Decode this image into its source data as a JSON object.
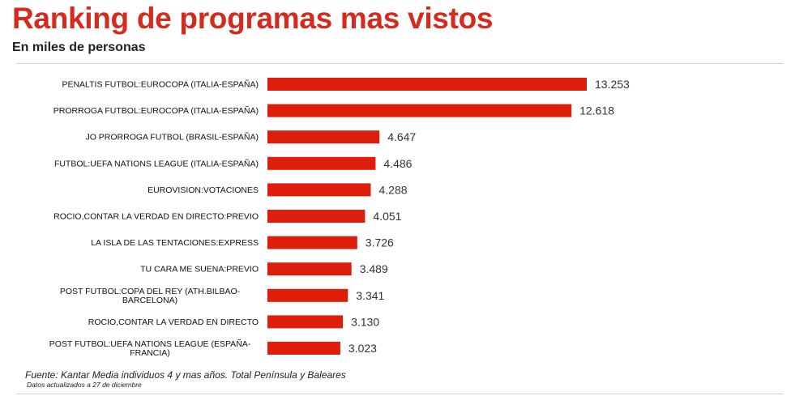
{
  "header": {
    "title": "Ranking de programas mas vistos",
    "subtitle": "En miles de personas"
  },
  "footer": {
    "source": "Fuente: Kantar Media individuos 4 y mas años. Total Península y Baleares",
    "updated": "Datos actualizados a 27 de diciembre"
  },
  "colors": {
    "title": "#d52b1e",
    "bar": "#dd1e0a"
  },
  "chart_data": {
    "type": "bar",
    "orientation": "horizontal",
    "title": "Ranking de programas mas vistos",
    "subtitle": "En miles de personas",
    "grid": false,
    "legend": "none",
    "categories": [
      [
        "PENALTIS FUTBOL:EUROCOPA (ITALIA-ESPAÑA)"
      ],
      [
        "PRORROGA FUTBOL:EUROCOPA (ITALIA-ESPAÑA)"
      ],
      [
        "JO PRORROGA FUTBOL (BRASIL-ESPAÑA)"
      ],
      [
        "FUTBOL:UEFA NATIONS LEAGUE (ITALIA-ESPAÑA)"
      ],
      [
        "EUROVISION:VOTACIONES"
      ],
      [
        "ROCIO,CONTAR LA VERDAD EN DIRECTO:PREVIO"
      ],
      [
        "LA ISLA DE LAS TENTACIONES:EXPRESS"
      ],
      [
        "TU CARA ME SUENA:PREVIO"
      ],
      [
        "POST FUTBOL:COPA DEL REY (ATH.BILBAO-",
        "BARCELONA)"
      ],
      [
        "ROCIO,CONTAR LA VERDAD EN DIRECTO"
      ],
      [
        "POST FUTBOL:UEFA NATIONS LEAGUE (ESPAÑA-",
        "FRANCIA)"
      ]
    ],
    "values": [
      13253,
      12618,
      4647,
      4486,
      4288,
      4051,
      3726,
      3489,
      3341,
      3130,
      3023
    ],
    "value_labels": [
      "13.253",
      "12.618",
      "4.647",
      "4.486",
      "4.288",
      "4.051",
      "3.726",
      "3.489",
      "3.341",
      "3.130",
      "3.023"
    ],
    "xlim": [
      0,
      15000
    ]
  }
}
